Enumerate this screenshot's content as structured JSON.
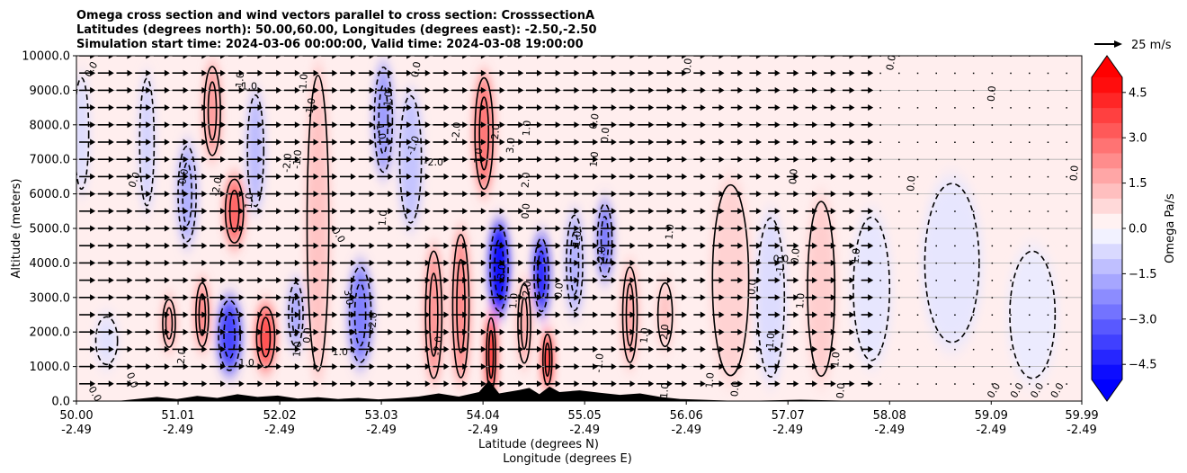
{
  "chart_data": {
    "type": "heatmap",
    "title_lines": [
      "Omega cross section and wind vectors parallel to cross section: CrosssectionA",
      "Latitudes (degrees north): 50.00,60.00, Longitudes (degrees east): -2.50,-2.50",
      "Simulation start time: 2024-03-06 00:00:00, Valid time: 2024-03-08 19:00:00"
    ],
    "ylabel": "Altitude (meters)",
    "xlabel_lat": "Latitude (degrees N)",
    "xlabel_lon": "Longitude (degrees E)",
    "ylim": [
      0,
      10000
    ],
    "xlim": [
      50.0,
      59.99
    ],
    "y_ticks": [
      {
        "value": 0,
        "label": "0.0"
      },
      {
        "value": 1000,
        "label": "1000.0"
      },
      {
        "value": 2000,
        "label": "2000.0"
      },
      {
        "value": 3000,
        "label": "3000.0"
      },
      {
        "value": 4000,
        "label": "4000.0"
      },
      {
        "value": 5000,
        "label": "5000.0"
      },
      {
        "value": 6000,
        "label": "6000.0"
      },
      {
        "value": 7000,
        "label": "7000.0"
      },
      {
        "value": 8000,
        "label": "8000.0"
      },
      {
        "value": 9000,
        "label": "9000.0"
      },
      {
        "value": 10000,
        "label": "10000.0"
      }
    ],
    "x_ticks": [
      {
        "value": 50.0,
        "lat": "50.00",
        "lon": "-2.49"
      },
      {
        "value": 51.01,
        "lat": "51.01",
        "lon": "-2.49"
      },
      {
        "value": 52.02,
        "lat": "52.02",
        "lon": "-2.49"
      },
      {
        "value": 53.03,
        "lat": "53.03",
        "lon": "-2.49"
      },
      {
        "value": 54.04,
        "lat": "54.04",
        "lon": "-2.49"
      },
      {
        "value": 55.05,
        "lat": "55.05",
        "lon": "-2.49"
      },
      {
        "value": 56.06,
        "lat": "56.06",
        "lon": "-2.49"
      },
      {
        "value": 57.07,
        "lat": "57.07",
        "lon": "-2.49"
      },
      {
        "value": 58.08,
        "lat": "58.08",
        "lon": "-2.49"
      },
      {
        "value": 59.09,
        "lat": "59.09",
        "lon": "-2.49"
      },
      {
        "value": 59.99,
        "lat": "59.99",
        "lon": "-2.49"
      }
    ],
    "colorbar": {
      "label": "Omega Pa/s",
      "range": [
        -5.0,
        5.0
      ],
      "ticks": [
        {
          "value": 4.5,
          "label": "4.5"
        },
        {
          "value": 3.0,
          "label": "3.0"
        },
        {
          "value": 1.5,
          "label": "1.5"
        },
        {
          "value": 0.0,
          "label": "0.0"
        },
        {
          "value": -1.5,
          "label": "−1.5"
        },
        {
          "value": -3.0,
          "label": "−3.0"
        },
        {
          "value": -4.5,
          "label": "−4.5"
        }
      ]
    },
    "quiver_key": {
      "label": "25 m/s",
      "value": 25
    },
    "omega_bands": [
      {
        "lat": 50.05,
        "ymin": 6000,
        "ymax": 9500,
        "omega": -0.7,
        "width": 0.08
      },
      {
        "lat": 50.3,
        "ymin": 1000,
        "ymax": 2500,
        "omega": -0.6,
        "width": 0.12
      },
      {
        "lat": 50.7,
        "ymin": 5500,
        "ymax": 9500,
        "omega": -0.9,
        "width": 0.08
      },
      {
        "lat": 50.92,
        "ymin": 1500,
        "ymax": 3000,
        "omega": 2.0,
        "width": 0.07
      },
      {
        "lat": 51.1,
        "ymin": 4500,
        "ymax": 7500,
        "omega": -1.6,
        "width": 0.1
      },
      {
        "lat": 51.25,
        "ymin": 1500,
        "ymax": 3500,
        "omega": 2.6,
        "width": 0.07
      },
      {
        "lat": 51.35,
        "ymin": 7000,
        "ymax": 9800,
        "omega": 2.0,
        "width": 0.09
      },
      {
        "lat": 51.52,
        "ymin": 800,
        "ymax": 3000,
        "omega": -3.8,
        "width": 0.12
      },
      {
        "lat": 51.57,
        "ymin": 4500,
        "ymax": 6500,
        "omega": 3.2,
        "width": 0.1
      },
      {
        "lat": 51.78,
        "ymin": 5500,
        "ymax": 9000,
        "omega": -1.4,
        "width": 0.09
      },
      {
        "lat": 51.88,
        "ymin": 900,
        "ymax": 2800,
        "omega": 3.6,
        "width": 0.1
      },
      {
        "lat": 52.18,
        "ymin": 1500,
        "ymax": 3500,
        "omega": -1.8,
        "width": 0.08
      },
      {
        "lat": 52.4,
        "ymin": 500,
        "ymax": 9800,
        "omega": 1.2,
        "width": 0.12
      },
      {
        "lat": 52.82,
        "ymin": 1000,
        "ymax": 4000,
        "omega": -2.6,
        "width": 0.12
      },
      {
        "lat": 53.05,
        "ymin": 6500,
        "ymax": 9800,
        "omega": -2.0,
        "width": 0.1
      },
      {
        "lat": 53.32,
        "ymin": 5000,
        "ymax": 9000,
        "omega": -1.2,
        "width": 0.12
      },
      {
        "lat": 53.55,
        "ymin": 500,
        "ymax": 4500,
        "omega": 2.2,
        "width": 0.09
      },
      {
        "lat": 53.82,
        "ymin": 500,
        "ymax": 5000,
        "omega": 2.4,
        "width": 0.09
      },
      {
        "lat": 54.05,
        "ymin": 6000,
        "ymax": 9500,
        "omega": 2.8,
        "width": 0.1
      },
      {
        "lat": 54.12,
        "ymin": 200,
        "ymax": 2500,
        "omega": 5.0,
        "width": 0.05
      },
      {
        "lat": 54.2,
        "ymin": 2500,
        "ymax": 5200,
        "omega": -5.0,
        "width": 0.1
      },
      {
        "lat": 54.45,
        "ymin": 1000,
        "ymax": 3500,
        "omega": 1.8,
        "width": 0.07
      },
      {
        "lat": 54.62,
        "ymin": 2500,
        "ymax": 4800,
        "omega": -4.6,
        "width": 0.08
      },
      {
        "lat": 54.68,
        "ymin": 400,
        "ymax": 2000,
        "omega": 5.0,
        "width": 0.05
      },
      {
        "lat": 54.95,
        "ymin": 2500,
        "ymax": 5500,
        "omega": -1.6,
        "width": 0.09
      },
      {
        "lat": 55.25,
        "ymin": 3500,
        "ymax": 5800,
        "omega": -2.8,
        "width": 0.08
      },
      {
        "lat": 55.5,
        "ymin": 1000,
        "ymax": 4000,
        "omega": 1.8,
        "width": 0.08
      },
      {
        "lat": 55.85,
        "ymin": 1500,
        "ymax": 3500,
        "omega": 1.2,
        "width": 0.08
      },
      {
        "lat": 56.5,
        "ymin": 500,
        "ymax": 6500,
        "omega": 0.9,
        "width": 0.2
      },
      {
        "lat": 56.9,
        "ymin": 500,
        "ymax": 5500,
        "omega": -0.7,
        "width": 0.15
      },
      {
        "lat": 57.4,
        "ymin": 500,
        "ymax": 6000,
        "omega": 1.0,
        "width": 0.15
      },
      {
        "lat": 57.9,
        "ymin": 1000,
        "ymax": 5500,
        "omega": -0.5,
        "width": 0.2
      },
      {
        "lat": 58.7,
        "ymin": 1500,
        "ymax": 6500,
        "omega": -0.5,
        "width": 0.3
      },
      {
        "lat": 59.5,
        "ymin": 500,
        "ymax": 4500,
        "omega": -0.4,
        "width": 0.25
      }
    ],
    "contour_labels": [
      {
        "lat": 50.15,
        "alt": 9600,
        "text": "0.0",
        "angle": -60
      },
      {
        "lat": 50.18,
        "alt": 200,
        "text": "0.0",
        "angle": 60
      },
      {
        "lat": 50.55,
        "alt": 600,
        "text": "0.0",
        "angle": 70
      },
      {
        "lat": 50.58,
        "alt": 6400,
        "text": "0.0",
        "angle": -70
      },
      {
        "lat": 51.07,
        "alt": 6500,
        "text": "0.0",
        "angle": -80
      },
      {
        "lat": 51.05,
        "alt": 1300,
        "text": "2.0",
        "angle": -85
      },
      {
        "lat": 51.4,
        "alt": 6200,
        "text": "-2.0",
        "angle": -80
      },
      {
        "lat": 51.63,
        "alt": 9300,
        "text": "1.0",
        "angle": -85
      },
      {
        "lat": 51.7,
        "alt": 9100,
        "text": "-1.0",
        "angle": 0
      },
      {
        "lat": 51.69,
        "alt": 1100,
        "text": "1.0",
        "angle": 0
      },
      {
        "lat": 51.72,
        "alt": 5800,
        "text": "1.0",
        "angle": -85
      },
      {
        "lat": 52.1,
        "alt": 6900,
        "text": "-2.0",
        "angle": -85
      },
      {
        "lat": 52.2,
        "alt": 7000,
        "text": "-1.0",
        "angle": -85
      },
      {
        "lat": 52.26,
        "alt": 9200,
        "text": "-1.0",
        "angle": -85
      },
      {
        "lat": 52.2,
        "alt": 1500,
        "text": "1.0",
        "angle": -85
      },
      {
        "lat": 52.33,
        "alt": 8500,
        "text": "-1.0",
        "angle": -80
      },
      {
        "lat": 52.3,
        "alt": 1900,
        "text": "0.0",
        "angle": -85
      },
      {
        "lat": 52.6,
        "alt": 4800,
        "text": "0.0",
        "angle": 60
      },
      {
        "lat": 52.62,
        "alt": 1400,
        "text": "1.0",
        "angle": 0
      },
      {
        "lat": 52.7,
        "alt": 3000,
        "text": "3.0",
        "angle": 80
      },
      {
        "lat": 52.95,
        "alt": 2300,
        "text": "-2.0",
        "angle": -85
      },
      {
        "lat": 53.05,
        "alt": 5300,
        "text": "1.0",
        "angle": -85
      },
      {
        "lat": 53.02,
        "alt": 7800,
        "text": "1.0",
        "angle": 80
      },
      {
        "lat": 53.1,
        "alt": 8700,
        "text": "-1.0",
        "angle": -85
      },
      {
        "lat": 53.35,
        "alt": 7400,
        "text": "-1.0",
        "angle": -70
      },
      {
        "lat": 53.38,
        "alt": 9600,
        "text": "0.0",
        "angle": -80
      },
      {
        "lat": 53.6,
        "alt": 1600,
        "text": "-2.0",
        "angle": -85
      },
      {
        "lat": 53.78,
        "alt": 7800,
        "text": "-2.0",
        "angle": -85
      },
      {
        "lat": 53.55,
        "alt": 6900,
        "text": "-2.0",
        "angle": 0
      },
      {
        "lat": 54.0,
        "alt": 7100,
        "text": "1.0",
        "angle": -85
      },
      {
        "lat": 54.17,
        "alt": 7800,
        "text": "2.0",
        "angle": -85
      },
      {
        "lat": 54.23,
        "alt": 3700,
        "text": "-3.0",
        "angle": -85
      },
      {
        "lat": 54.35,
        "alt": 2900,
        "text": "1.0",
        "angle": -85
      },
      {
        "lat": 54.32,
        "alt": 7400,
        "text": "3.0",
        "angle": -85
      },
      {
        "lat": 54.47,
        "alt": 6400,
        "text": "2.0",
        "angle": -85
      },
      {
        "lat": 54.48,
        "alt": 7900,
        "text": "1.0",
        "angle": -85
      },
      {
        "lat": 54.47,
        "alt": 5500,
        "text": "0.0",
        "angle": -85
      },
      {
        "lat": 54.48,
        "alt": 3200,
        "text": "-2.0",
        "angle": -85
      },
      {
        "lat": 54.8,
        "alt": 3200,
        "text": "0.0",
        "angle": -85
      },
      {
        "lat": 54.98,
        "alt": 4700,
        "text": "1.0",
        "angle": -85
      },
      {
        "lat": 55.15,
        "alt": 8100,
        "text": "0.0",
        "angle": -80
      },
      {
        "lat": 55.26,
        "alt": 7700,
        "text": "0.0",
        "angle": -85
      },
      {
        "lat": 55.22,
        "alt": 4200,
        "text": "-2.0",
        "angle": -85
      },
      {
        "lat": 55.15,
        "alt": 7000,
        "text": "1.0",
        "angle": -85
      },
      {
        "lat": 55.2,
        "alt": 1100,
        "text": "-1.0",
        "angle": -85
      },
      {
        "lat": 55.65,
        "alt": 1900,
        "text": "1.0",
        "angle": -85
      },
      {
        "lat": 55.85,
        "alt": 2000,
        "text": "2.0",
        "angle": -85
      },
      {
        "lat": 55.9,
        "alt": 4900,
        "text": "1.0",
        "angle": -85
      },
      {
        "lat": 55.85,
        "alt": 300,
        "text": "1.0",
        "angle": -85
      },
      {
        "lat": 56.08,
        "alt": 9700,
        "text": "0.0",
        "angle": -85
      },
      {
        "lat": 56.3,
        "alt": 600,
        "text": "1.0",
        "angle": -85
      },
      {
        "lat": 56.55,
        "alt": 350,
        "text": "0.0",
        "angle": -85
      },
      {
        "lat": 56.72,
        "alt": 3300,
        "text": "0.0",
        "angle": -85
      },
      {
        "lat": 56.9,
        "alt": 1700,
        "text": "-1.0",
        "angle": -85
      },
      {
        "lat": 57.0,
        "alt": 3900,
        "text": "-1.0",
        "angle": -85
      },
      {
        "lat": 57.0,
        "alt": 4100,
        "text": "0.0",
        "angle": 0
      },
      {
        "lat": 57.13,
        "alt": 6500,
        "text": "0.0",
        "angle": -85
      },
      {
        "lat": 57.2,
        "alt": 2900,
        "text": "1.0",
        "angle": -85
      },
      {
        "lat": 57.15,
        "alt": 4200,
        "text": "0.0",
        "angle": -85
      },
      {
        "lat": 57.55,
        "alt": 1200,
        "text": "1.0",
        "angle": -85
      },
      {
        "lat": 57.6,
        "alt": 300,
        "text": "0.0",
        "angle": -85
      },
      {
        "lat": 57.75,
        "alt": 4200,
        "text": "1.0",
        "angle": -85
      },
      {
        "lat": 58.1,
        "alt": 9800,
        "text": "0.0",
        "angle": -80
      },
      {
        "lat": 58.3,
        "alt": 6300,
        "text": "0.0",
        "angle": -85
      },
      {
        "lat": 59.1,
        "alt": 8900,
        "text": "0.0",
        "angle": -85
      },
      {
        "lat": 59.12,
        "alt": 300,
        "text": "0.0",
        "angle": -60
      },
      {
        "lat": 59.35,
        "alt": 300,
        "text": "0.0",
        "angle": -60
      },
      {
        "lat": 59.55,
        "alt": 300,
        "text": "0.0",
        "angle": -60
      },
      {
        "lat": 59.75,
        "alt": 300,
        "text": "0.0",
        "angle": -60
      },
      {
        "lat": 59.92,
        "alt": 6600,
        "text": "0.0",
        "angle": -85
      }
    ]
  }
}
